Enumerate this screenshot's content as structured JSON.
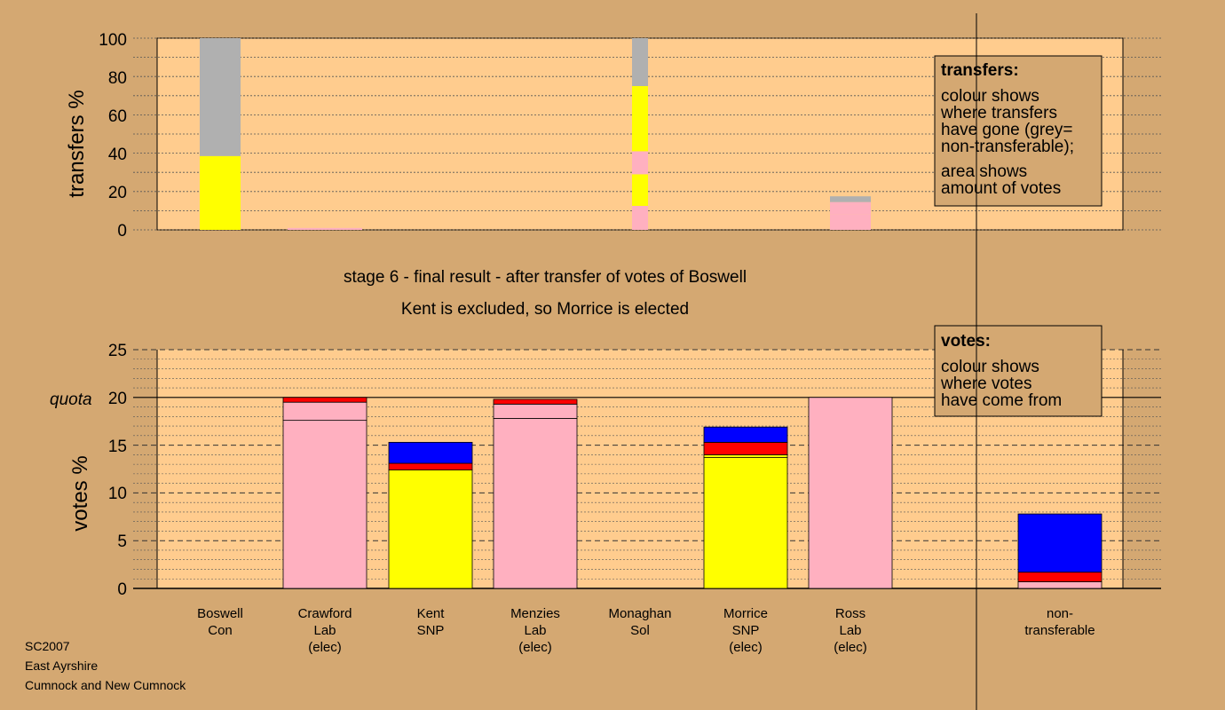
{
  "colors": {
    "background": "#d4a872",
    "plot_bg": "#ffcc8e",
    "legend_bg": "#d4a872",
    "Con": "#0000ff",
    "Lab": "#ffb0c0",
    "SNP": "#ffff00",
    "Sol": "#ff0000",
    "nontransferable": "#b0b0b0"
  },
  "top_panel": {
    "ylabel": "transfers %",
    "ticks": [
      "0",
      "20",
      "40",
      "60",
      "80",
      "100"
    ],
    "legend": {
      "title": "transfers:",
      "lines": [
        "colour shows",
        "where transfers",
        "have gone (grey=",
        "non-transferable);"
      ],
      "lines2": [
        "area shows",
        "amount of votes"
      ]
    }
  },
  "stage_text": {
    "line1": "stage 6 - final result - after transfer of votes of Boswell",
    "line2": "Kent is excluded, so Morrice is elected"
  },
  "bottom_panel": {
    "ylabel": "votes %",
    "ticks": [
      "0",
      "5",
      "10",
      "15",
      "20",
      "25"
    ],
    "quota_label": "quota",
    "legend": {
      "title": "votes:",
      "lines": [
        "colour shows",
        "where votes",
        "have come from"
      ]
    }
  },
  "footer": {
    "line1": "SC2007",
    "line2": "East Ayrshire",
    "line3": "Cumnock and New Cumnock"
  },
  "chart_data": [
    {
      "type": "bar",
      "panel": "transfers",
      "ylabel": "transfers %",
      "ylim": [
        0,
        100
      ],
      "columns": [
        {
          "segments": [
            {
              "color": "SNP",
              "value": 38.5
            },
            {
              "color": "nontransferable",
              "value": 61.5
            }
          ],
          "width": "wide"
        },
        {
          "segments": [
            {
              "color": "Lab",
              "value": 1.0
            }
          ],
          "width": "thin"
        },
        {
          "segments": [],
          "width": "none"
        },
        {
          "segments": [],
          "width": "none"
        },
        {
          "segments": [
            {
              "color": "Lab",
              "value": 12.5
            },
            {
              "color": "SNP",
              "value": 16.5
            },
            {
              "color": "Lab",
              "value": 12.0
            },
            {
              "color": "SNP",
              "value": 34.0
            },
            {
              "color": "nontransferable",
              "value": 25.0
            }
          ],
          "width": "narrow"
        },
        {
          "segments": [],
          "width": "none"
        },
        {
          "segments": [
            {
              "color": "Lab",
              "value": 8.0
            },
            {
              "color": "Lab",
              "value": 5.0
            },
            {
              "color": "Lab",
              "value": 1.5
            },
            {
              "color": "nontransferable",
              "value": 3.0
            }
          ],
          "width": "wide"
        }
      ]
    },
    {
      "type": "bar",
      "panel": "votes",
      "ylabel": "votes %",
      "ylim": [
        0,
        25
      ],
      "quota": 20,
      "candidates": [
        {
          "name": "Boswell",
          "party": "Con",
          "status": "",
          "segments": []
        },
        {
          "name": "Crawford",
          "party": "Lab",
          "status": "(elec)",
          "segments": [
            {
              "color": "Lab",
              "value": 17.6
            },
            {
              "color": "Lab",
              "value": 1.9
            },
            {
              "color": "Sol",
              "value": 0.5
            }
          ]
        },
        {
          "name": "Kent",
          "party": "SNP",
          "status": "",
          "segments": [
            {
              "color": "SNP",
              "value": 12.4
            },
            {
              "color": "Sol",
              "value": 0.7
            },
            {
              "color": "Con",
              "value": 2.2
            }
          ]
        },
        {
          "name": "Menzies",
          "party": "Lab",
          "status": "(elec)",
          "segments": [
            {
              "color": "Lab",
              "value": 17.8
            },
            {
              "color": "Lab",
              "value": 1.5
            },
            {
              "color": "Sol",
              "value": 0.5
            }
          ]
        },
        {
          "name": "Monaghan",
          "party": "Sol",
          "status": "",
          "segments": []
        },
        {
          "name": "Morrice",
          "party": "SNP",
          "status": "(elec)",
          "segments": [
            {
              "color": "SNP",
              "value": 13.7
            },
            {
              "color": "SNP",
              "value": 0.3
            },
            {
              "color": "Sol",
              "value": 1.3
            },
            {
              "color": "Con",
              "value": 1.6
            }
          ]
        },
        {
          "name": "Ross",
          "party": "Lab",
          "status": "(elec)",
          "segments": [
            {
              "color": "Lab",
              "value": 20.0
            }
          ]
        },
        {
          "name": "non-",
          "party": "transferable",
          "status": "",
          "segments": [
            {
              "color": "Lab",
              "value": 0.7
            },
            {
              "color": "Sol",
              "value": 1.0
            },
            {
              "color": "Con",
              "value": 6.1
            }
          ]
        }
      ]
    }
  ]
}
